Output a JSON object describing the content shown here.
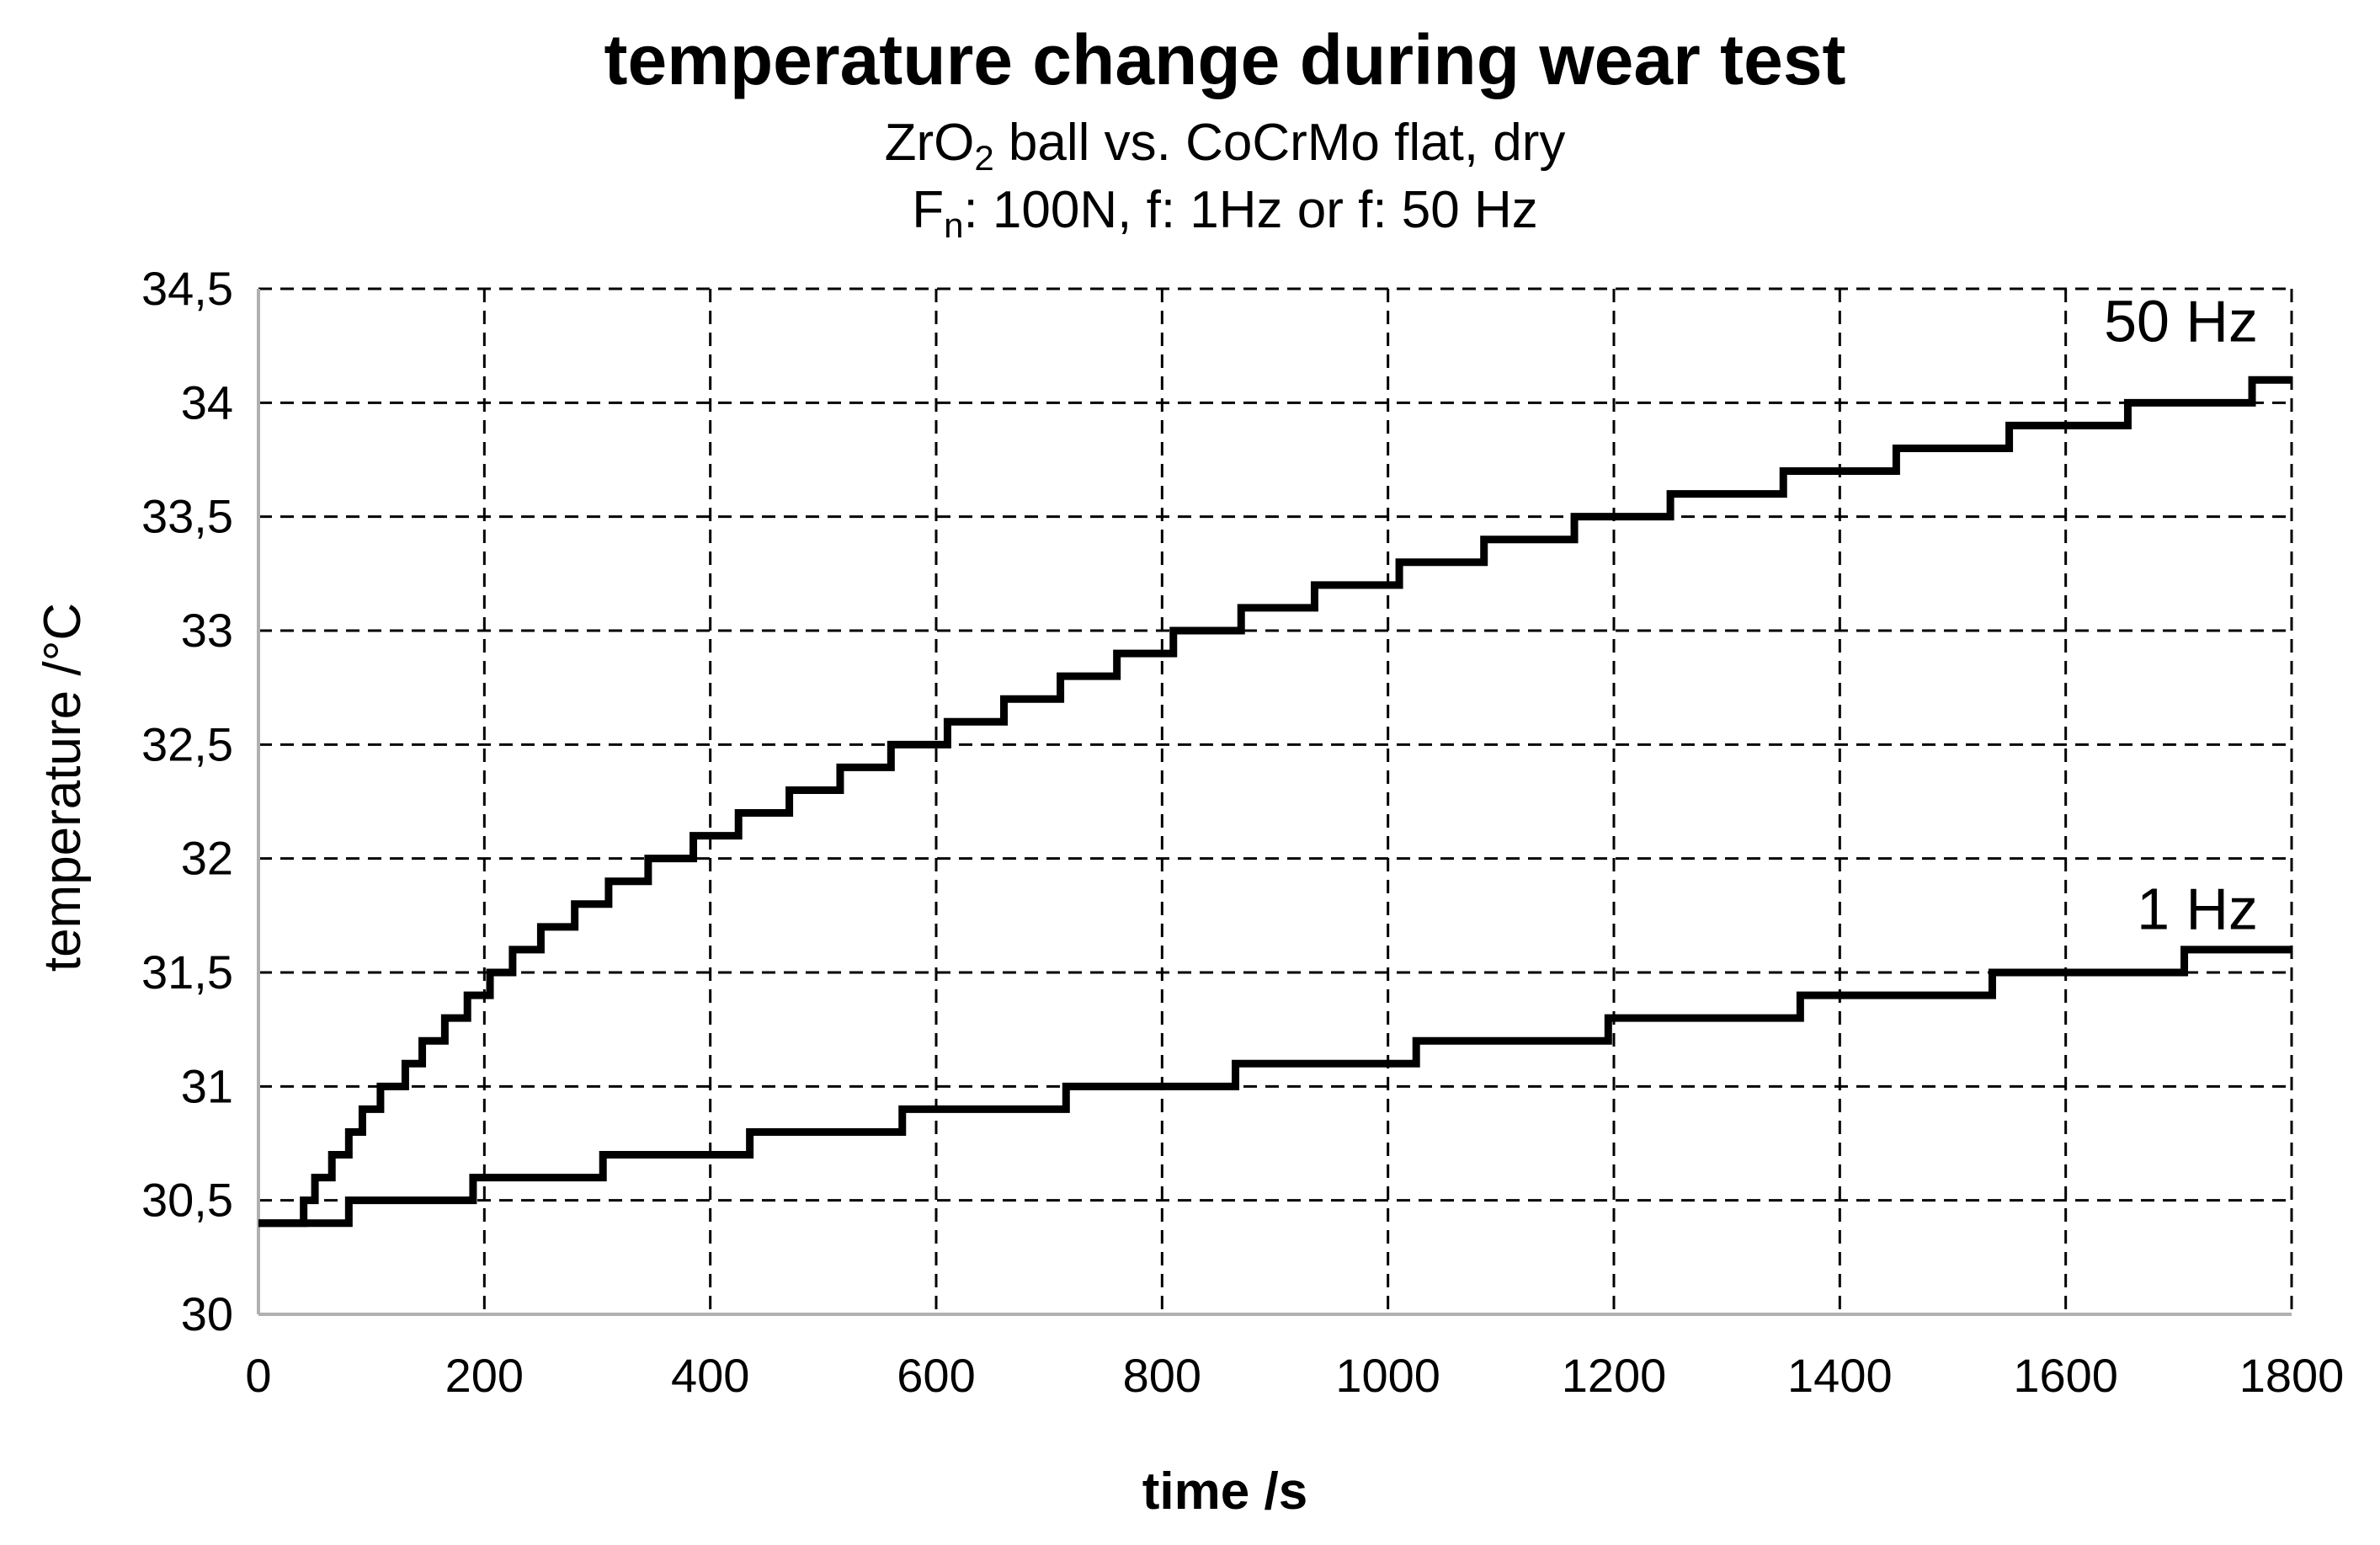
{
  "chart_data": {
    "type": "line",
    "title": "temperature change during wear test",
    "subtitle": {
      "line1": {
        "prefix": "ZrO",
        "sub": "2",
        "suffix": " ball vs. CoCrMo flat, dry"
      },
      "line2": {
        "prefix": "F",
        "sub": "n",
        "suffix": ": 100N, f: 1Hz or f: 50 Hz"
      }
    },
    "xlabel": "time /s",
    "ylabel": "temperature /°C",
    "xlim": [
      0,
      1800
    ],
    "ylim": [
      30,
      34.5
    ],
    "x_ticks": [
      0,
      200,
      400,
      600,
      800,
      1000,
      1200,
      1400,
      1600,
      1800
    ],
    "x_tick_labels": [
      "0",
      "200",
      "400",
      "600",
      "800",
      "1000",
      "1200",
      "1400",
      "1600",
      "1800"
    ],
    "y_ticks": [
      30,
      30.5,
      31,
      31.5,
      32,
      32.5,
      33,
      33.5,
      34,
      34.5
    ],
    "y_tick_labels": [
      "30",
      "30,5",
      "31",
      "31,5",
      "32",
      "32,5",
      "33",
      "33,5",
      "34",
      "34,5"
    ],
    "grid": true,
    "line_color": "#000000",
    "series": [
      {
        "name": "50 Hz",
        "step": true,
        "x": [
          0,
          40,
          50,
          65,
          80,
          92,
          108,
          130,
          145,
          165,
          185,
          205,
          225,
          250,
          280,
          310,
          345,
          385,
          425,
          470,
          515,
          560,
          610,
          660,
          710,
          760,
          810,
          870,
          935,
          1010,
          1085,
          1165,
          1250,
          1350,
          1450,
          1550,
          1655,
          1765,
          1800
        ],
        "values": [
          30.4,
          30.5,
          30.6,
          30.7,
          30.8,
          30.9,
          31.0,
          31.1,
          31.2,
          31.3,
          31.4,
          31.5,
          31.6,
          31.7,
          31.8,
          31.9,
          32.0,
          32.1,
          32.2,
          32.3,
          32.4,
          32.5,
          32.6,
          32.7,
          32.8,
          32.9,
          33.0,
          33.1,
          33.2,
          33.3,
          33.4,
          33.5,
          33.6,
          33.7,
          33.8,
          33.9,
          34.0,
          34.1,
          34.1
        ]
      },
      {
        "name": "1 Hz",
        "step": true,
        "x": [
          0,
          80,
          190,
          305,
          435,
          570,
          715,
          865,
          1025,
          1195,
          1365,
          1535,
          1705,
          1800
        ],
        "values": [
          30.4,
          30.5,
          30.6,
          30.7,
          30.8,
          30.9,
          31.0,
          31.1,
          31.2,
          31.3,
          31.4,
          31.5,
          31.6,
          31.6
        ]
      }
    ]
  }
}
